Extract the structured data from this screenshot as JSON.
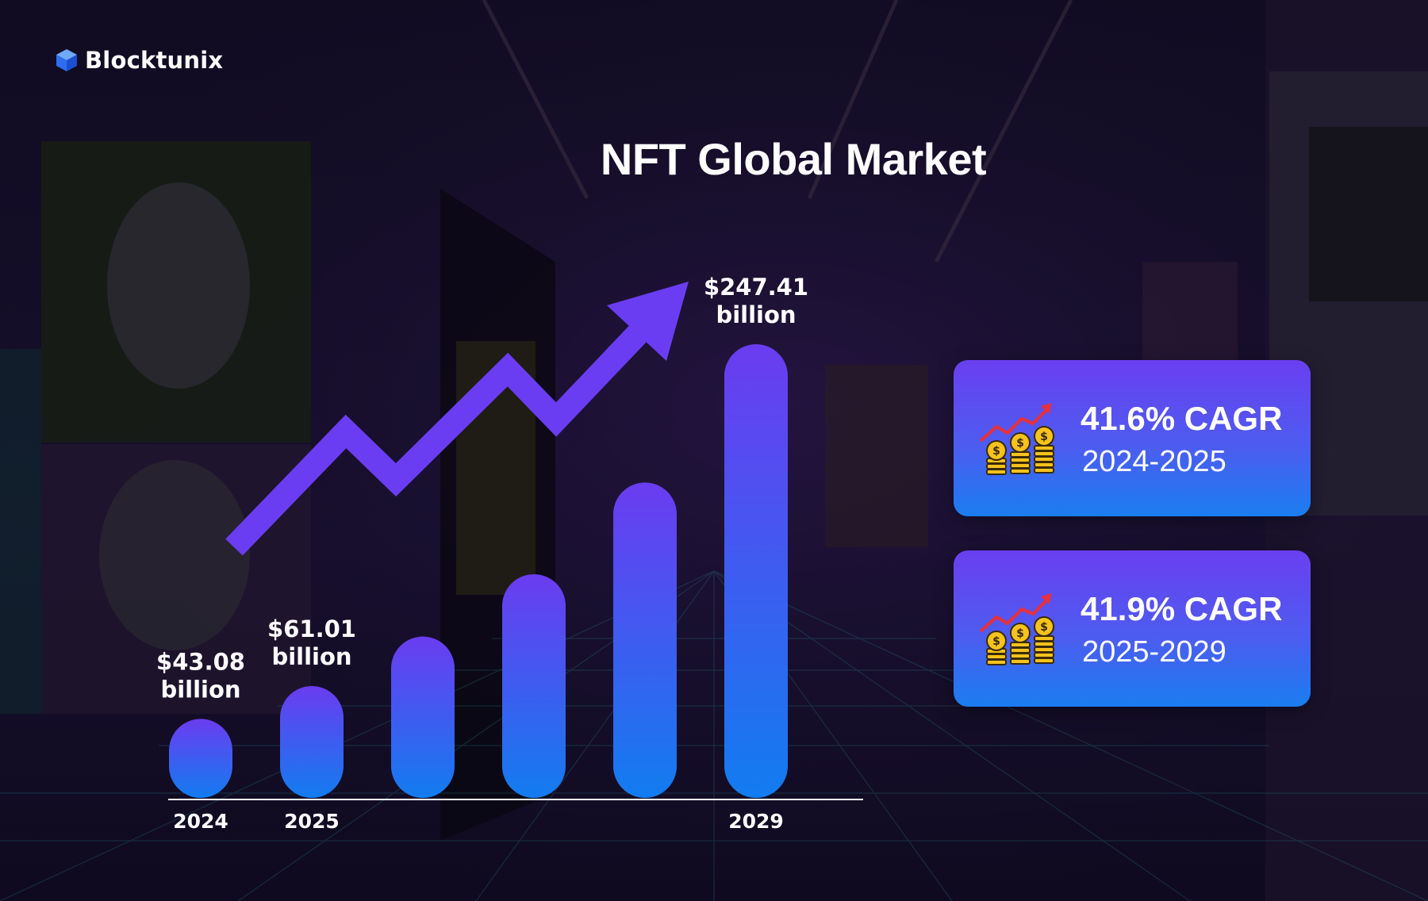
{
  "brand": {
    "name": "Blocktunix",
    "icon": "cube-icon"
  },
  "colors": {
    "bar_top": "#6b3cf0",
    "bar_bottom": "#127cf0",
    "arrow": "#6a3df2",
    "card_top": "#6a3ff0",
    "card_bottom": "#1a7df0",
    "background": "#15102a"
  },
  "chart_data": {
    "type": "bar",
    "title": "NFT Global Market",
    "categories": [
      "2024",
      "2025",
      "",
      "",
      "",
      "2029"
    ],
    "values": [
      43.08,
      61.01,
      88,
      122,
      172,
      247.41
    ],
    "value_labels": [
      [
        "$43.08",
        "billion"
      ],
      [
        "$61.01",
        "billion"
      ],
      null,
      null,
      null,
      [
        "$247.41",
        "billion"
      ]
    ],
    "unit": "billion USD",
    "trend_arrow": "up",
    "grid": false
  },
  "stats": [
    {
      "value": "41.6% CAGR",
      "period": "2024-2025",
      "icon": "growth-coins-icon"
    },
    {
      "value": "41.9% CAGR",
      "period": "2025-2029",
      "icon": "growth-coins-icon"
    }
  ]
}
